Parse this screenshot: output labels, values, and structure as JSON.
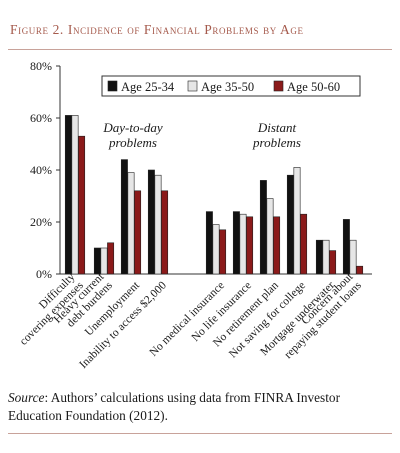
{
  "figure": {
    "title": "Figure 2. Incidence of Financial Problems by Age",
    "source_label": "Source",
    "source_text": ": Authors’ calculations using data from FINRA Investor Education Foundation (2012)."
  },
  "chart_data": {
    "type": "bar",
    "title": "",
    "xlabel": "",
    "ylabel": "",
    "ylim": [
      0,
      80
    ],
    "yticks": [
      "0%",
      "20%",
      "40%",
      "60%",
      "80%"
    ],
    "ytick_values": [
      0,
      20,
      40,
      60,
      80
    ],
    "grid": false,
    "legend_position": "top-right",
    "categories": [
      "Difficulty covering expenses",
      "Heavy current debt burdens",
      "Unemployment",
      "Inability to access $2,000",
      "No medical insurance",
      "No life insurance",
      "No retirement plan",
      "Not saving for college",
      "Mortgage underwater",
      "Concern about repaying student loans"
    ],
    "groups": [
      {
        "label": "Day-to-day problems",
        "categories": [
          0,
          1,
          2,
          3
        ]
      },
      {
        "label": "Distant problems",
        "categories": [
          4,
          5,
          6,
          7,
          8,
          9
        ]
      }
    ],
    "series": [
      {
        "name": "Age 25-34",
        "color": "#111111",
        "values": [
          61,
          10,
          44,
          40,
          24,
          24,
          36,
          38,
          13,
          21
        ]
      },
      {
        "name": "Age 35-50",
        "color": "#e6e6e6",
        "values": [
          61,
          10,
          39,
          38,
          19,
          23,
          29,
          41,
          13,
          13
        ]
      },
      {
        "name": "Age 50-60",
        "color": "#8b1a1a",
        "values": [
          53,
          12,
          32,
          32,
          17,
          22,
          22,
          23,
          9,
          3
        ]
      }
    ]
  }
}
